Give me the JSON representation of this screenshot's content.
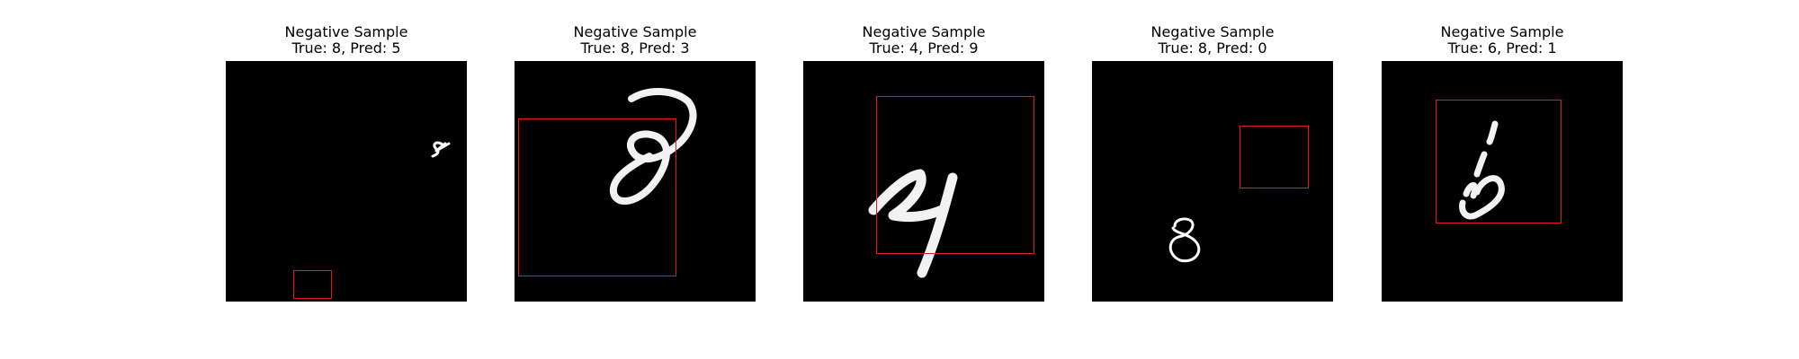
{
  "figure": {
    "panels": [
      {
        "title": "Negative Sample",
        "subtitle": "True: 8, Pred: 5",
        "true_label": 8,
        "pred_label": 5,
        "digit_icon": "digit-8-small-icon",
        "box_color": "#e41a1c"
      },
      {
        "title": "Negative Sample",
        "subtitle": "True: 8, Pred: 3",
        "true_label": 8,
        "pred_label": 3,
        "digit_icon": "digit-8-icon",
        "box_color": "#e41a1c"
      },
      {
        "title": "Negative Sample",
        "subtitle": "True: 4, Pred: 9",
        "true_label": 4,
        "pred_label": 9,
        "digit_icon": "digit-4-icon",
        "box_color": "#e41a1c"
      },
      {
        "title": "Negative Sample",
        "subtitle": "True: 8, Pred: 0",
        "true_label": 8,
        "pred_label": 0,
        "digit_icon": "digit-8-outline-icon",
        "box_color": "#e41a1c"
      },
      {
        "title": "Negative Sample",
        "subtitle": "True: 6, Pred: 1",
        "true_label": 6,
        "pred_label": 1,
        "digit_icon": "digit-6-icon",
        "box_color": "#e41a1c"
      }
    ]
  }
}
